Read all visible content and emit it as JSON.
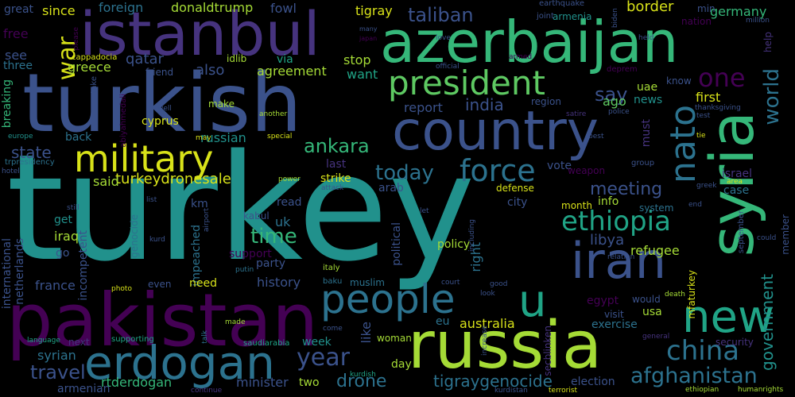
{
  "palette": {
    "background": "#000000",
    "yellow": "#d8e219",
    "lime": "#a5db36",
    "green": "#5ec962",
    "teal_green": "#35b779",
    "sea": "#20a486",
    "teal": "#21918c",
    "mid_blue": "#2c728e",
    "blue": "#3b528b",
    "indigo": "#46337e",
    "purple": "#440154"
  },
  "words": {
    "turkey": "turkey",
    "turkish": "turkish",
    "istanbul": "istanbul",
    "azerbaijan": "azerbaijan",
    "pakistan": "pakistan",
    "russia": "russia",
    "country": "country",
    "syria": "syria",
    "erdogan": "erdogan",
    "president": "president",
    "military": "military",
    "iran": "iran",
    "people": "people",
    "new": "new",
    "nato": "nato",
    "u": "u",
    "force": "force",
    "war": "war",
    "one": "one",
    "world": "world",
    "china": "china",
    "ethiopia": "ethiopia",
    "year": "year",
    "afghanistan": "afghanistan",
    "ankara": "ankara",
    "today": "today",
    "travel": "travel",
    "tigraygenocide": "tigraygenocide",
    "drone": "drone",
    "time": "time",
    "meeting": "meeting",
    "government": "government",
    "libya": "libya",
    "taliban": "taliban",
    "say": "say",
    "state": "state",
    "india": "india",
    "turkeydronesale": "turkeydronesale",
    "australia": "australia",
    "qatar": "qatar",
    "greece": "greece",
    "also": "also",
    "agreement": "agreement",
    "stop": "stop",
    "want": "want",
    "report": "report",
    "germany": "germany",
    "border": "border",
    "since": "since",
    "foreign": "foreign",
    "donaldtrump": "donaldtrump",
    "fowl": "fowl",
    "tigray": "tigray",
    "great": "great",
    "free": "free",
    "see": "see",
    "three": "three",
    "breaking": "breaking",
    "cappadocia": "cappadocia",
    "friend": "friend",
    "idlib": "idlib",
    "via": "via",
    "make": "make",
    "cyprus": "cyprus",
    "russian": "russian",
    "back": "back",
    "said": "said",
    "get": "get",
    "iraq": "iraq",
    "go": "go",
    "france": "france",
    "syrian": "syrian",
    "armenian": "armenian",
    "rtderdogan": "rtderdogan",
    "minister": "minister",
    "two": "two",
    "history": "history",
    "party": "party",
    "support": "support",
    "impeached": "impeached",
    "need": "need",
    "km": "km",
    "uk": "uk",
    "kabul": "kabul",
    "last": "last",
    "strike": "strike",
    "arab": "arab",
    "read": "read",
    "policy": "policy",
    "muslim": "muslim",
    "eu": "eu",
    "day": "day",
    "woman": "woman",
    "like": "like",
    "political": "political",
    "right": "right",
    "city": "city",
    "defense": "defense",
    "vote": "vote",
    "weapon": "weapon",
    "month": "month",
    "info": "info",
    "system": "system",
    "refugee": "refugee",
    "egypt": "egypt",
    "usa": "usa",
    "would": "would",
    "visit": "visit",
    "exercise": "exercise",
    "election": "election",
    "week": "week",
    "next": "next",
    "security": "security",
    "first": "first",
    "news": "news",
    "ago": "ago",
    "uae": "uae",
    "know": "know",
    "must": "must",
    "israel": "israel",
    "case": "case",
    "group": "group",
    "deprem": "deprem",
    "region": "region",
    "earthquake": "earthquake",
    "armenia": "armenia",
    "joint": "joint",
    "min": "min",
    "nation": "nation",
    "help": "help",
    "mfaturkey": "mfaturkey",
    "member": "member",
    "september": "september",
    "secblinken": "secblinken",
    "incompetent": "incompetent",
    "genocide": "genocide",
    "international": "international",
    "netherlands": "netherlands",
    "abiyahmedali": "abiyahmedali",
    "europe": "europe",
    "trpresidency": "trpresidency",
    "hotel": "hotel",
    "language": "language",
    "supporting": "supporting",
    "saudiarabia": "saudiarabia",
    "made": "made",
    "talk": "talk",
    "photo": "photo",
    "even": "even",
    "baku": "baku",
    "italy": "italy",
    "putin": "putin",
    "come": "come",
    "kurdish": "kurdish",
    "continue": "continue",
    "terrorist": "terrorist",
    "kurdistan": "kurdistan",
    "general": "general",
    "death": "death",
    "ethiopian": "ethiopian",
    "humanrights": "humanrights",
    "court": "court",
    "good": "good",
    "look": "look",
    "increase": "increase",
    "including": "including",
    "let": "let",
    "still": "still",
    "list": "list",
    "airport": "airport",
    "kurd": "kurd",
    "power": "power",
    "attack": "attack",
    "special": "special",
    "another": "another",
    "may": "may",
    "well": "well",
    "take": "take",
    "please": "please",
    "many": "many",
    "japan": "japan",
    "love": "love",
    "official": "official",
    "satire": "satire",
    "police": "police",
    "armed": "armed",
    "biden": "biden",
    "held": "held",
    "million": "million",
    "thanksgiving": "thanksgiving",
    "test": "test",
    "tie": "tie",
    "area": "area",
    "greek": "greek",
    "end": "end",
    "relation": "relation",
    "best": "best",
    "could": "could"
  }
}
